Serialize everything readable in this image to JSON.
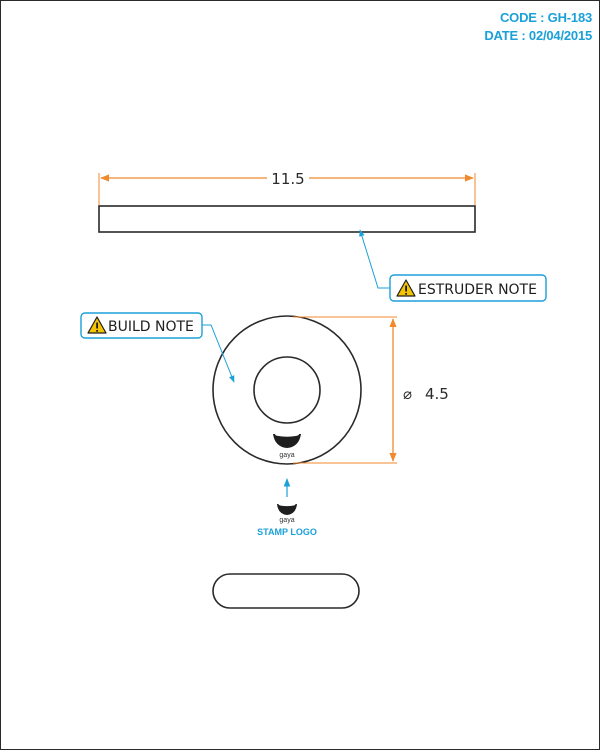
{
  "header": {
    "code": "CODE : GH-183",
    "date": "DATE : 02/04/2015"
  },
  "dimensions": {
    "length": "11.5",
    "diameter": "4.5",
    "diameter_symbol": "⌀"
  },
  "notes": {
    "estruder": "ESTRUDER NOTE",
    "build": "BUILD NOTE",
    "stamp": "STAMP LOGO"
  },
  "logo": {
    "name": "gaya"
  },
  "colors": {
    "accent": "#1ba0d8",
    "dimension": "#f08a2c",
    "line": "#2a2a2a",
    "warning": "#f5c400"
  },
  "icons": {
    "warning": "warning-triangle-icon",
    "logo": "gaya-bowl-logo-icon"
  }
}
